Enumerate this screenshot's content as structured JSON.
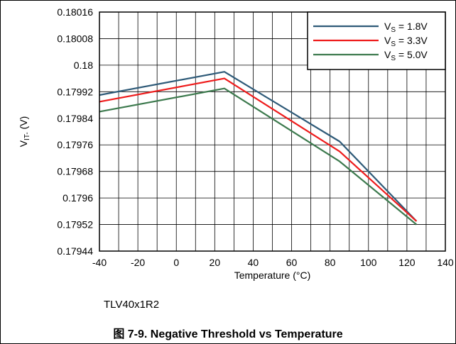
{
  "device_label": "TLV40x1R2",
  "caption": "图 7-9. Negative Threshold vs Temperature",
  "chart_data": {
    "type": "line",
    "xlabel": "Temperature (°C)",
    "ylabel": "V",
    "ylabel_sub": "IT-",
    "ylabel_unit": " (V)",
    "xlim": [
      -40,
      140
    ],
    "ylim": [
      0.17944,
      0.18016
    ],
    "x_ticks": [
      -40,
      -20,
      0,
      20,
      40,
      60,
      80,
      100,
      120,
      140
    ],
    "y_ticks": [
      0.17944,
      0.17952,
      0.1796,
      0.17968,
      0.17976,
      0.17984,
      0.17992,
      0.18,
      0.18008,
      0.18016
    ],
    "y_tick_labels": [
      "0.17944",
      "0.17952",
      "0.1796",
      "0.17968",
      "0.17976",
      "0.17984",
      "0.17992",
      "0.18",
      "0.18008",
      "0.18016"
    ],
    "grid": true,
    "legend_position": "top-right",
    "series": [
      {
        "name": "V",
        "name_sub": "S",
        "name_value": " = 1.8V",
        "color": "#2e5a78",
        "x": [
          -40,
          25,
          85,
          125
        ],
        "y": [
          0.17991,
          0.17998,
          0.17977,
          0.17953
        ]
      },
      {
        "name": "V",
        "name_sub": "S",
        "name_value": " = 3.3V",
        "color": "#ee1c1c",
        "x": [
          -40,
          25,
          85,
          125
        ],
        "y": [
          0.17989,
          0.17996,
          0.17974,
          0.17953
        ]
      },
      {
        "name": "V",
        "name_sub": "S",
        "name_value": " = 5.0V",
        "color": "#3d7a4e",
        "x": [
          -40,
          25,
          85,
          125
        ],
        "y": [
          0.17986,
          0.17993,
          0.17971,
          0.17952
        ]
      }
    ]
  }
}
